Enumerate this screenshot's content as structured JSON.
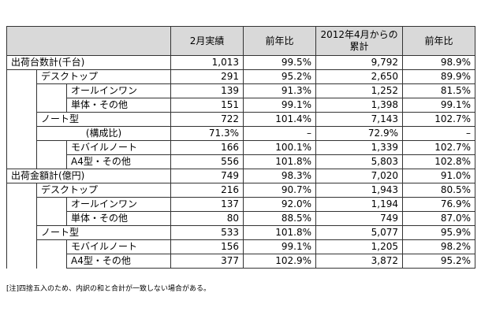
{
  "headers": [
    "",
    "2月実績",
    "前年比",
    "2012年4月からの累計",
    "前年比"
  ],
  "rows": [
    {
      "level": 0,
      "label": "出荷台数計(千台)",
      "values": [
        "1,013",
        "99.5%",
        "9,792",
        "98.9%"
      ]
    },
    {
      "level": 1,
      "label": "デスクトップ",
      "values": [
        "291",
        "95.2%",
        "2,650",
        "89.9%"
      ]
    },
    {
      "level": 2,
      "label": "オールインワン",
      "values": [
        "139",
        "91.3%",
        "1,252",
        "81.5%"
      ]
    },
    {
      "level": 2,
      "label": "単体・その他",
      "values": [
        "151",
        "99.1%",
        "1,398",
        "99.1%"
      ]
    },
    {
      "level": 1,
      "label": "ノート型",
      "values": [
        "722",
        "101.4%",
        "7,143",
        "102.7%"
      ]
    },
    {
      "level": 1,
      "label": "(構成比)",
      "ratio": true,
      "values": [
        "71.3%",
        "–",
        "72.9%",
        "–"
      ]
    },
    {
      "level": 2,
      "label": "モバイルノート",
      "values": [
        "166",
        "100.1%",
        "1,339",
        "102.7%"
      ]
    },
    {
      "level": 2,
      "label": "A4型・その他",
      "values": [
        "556",
        "101.8%",
        "5,803",
        "102.8%"
      ]
    },
    {
      "level": 0,
      "label": "出荷金額計(億円)",
      "values": [
        "749",
        "98.3%",
        "7,020",
        "91.0%"
      ]
    },
    {
      "level": 1,
      "label": "デスクトップ",
      "values": [
        "216",
        "90.7%",
        "1,943",
        "80.5%"
      ]
    },
    {
      "level": 2,
      "label": "オールインワン",
      "values": [
        "137",
        "92.0%",
        "1,194",
        "76.9%"
      ]
    },
    {
      "level": 2,
      "label": "単体・その他",
      "values": [
        "80",
        "88.5%",
        "749",
        "87.0%"
      ]
    },
    {
      "level": 1,
      "label": "ノート型",
      "values": [
        "533",
        "101.8%",
        "5,077",
        "95.9%"
      ]
    },
    {
      "level": 2,
      "label": "モバイルノート",
      "values": [
        "156",
        "99.1%",
        "1,205",
        "98.2%"
      ]
    },
    {
      "level": 2,
      "label": "A4型・その他",
      "values": [
        "377",
        "102.9%",
        "3,872",
        "95.2%"
      ]
    }
  ],
  "note": "[注]四捨五入のため、内訳の和と合計が一致しない場合がある。"
}
